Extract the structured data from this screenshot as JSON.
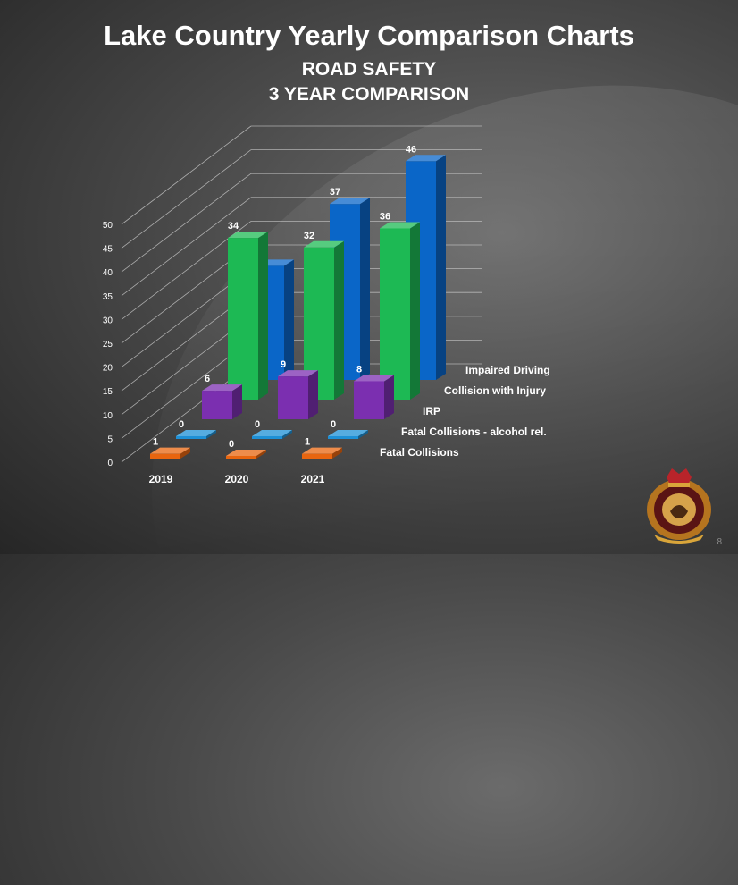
{
  "header": {
    "title": "Lake Country Yearly Comparison Charts",
    "subtitle_line1": "ROAD SAFETY",
    "subtitle_line2": "3 YEAR COMPARISON"
  },
  "page_number": "8",
  "crest_icon": "rcmp-crest-icon",
  "chart_data": {
    "type": "bar",
    "categories": [
      "2019",
      "2020",
      "2021"
    ],
    "yticks": [
      "0",
      "5",
      "10",
      "15",
      "20",
      "25",
      "30",
      "35",
      "40",
      "45",
      "50"
    ],
    "ylim": [
      0,
      50
    ],
    "series": [
      {
        "name": "Fatal Collisions",
        "values": [
          1,
          0,
          1
        ],
        "color": "#e8650f"
      },
      {
        "name": "Fatal Collisions - alcohol rel.",
        "values": [
          0,
          0,
          0
        ],
        "color": "#1e90d6"
      },
      {
        "name": "IRP",
        "values": [
          6,
          9,
          8
        ],
        "color": "#7b2fb0"
      },
      {
        "name": "Collision with Injury",
        "values": [
          34,
          32,
          36
        ],
        "color": "#1db954"
      },
      {
        "name": "Impaired Driving",
        "values": [
          24,
          37,
          46
        ],
        "color": "#0a66c8"
      }
    ]
  }
}
